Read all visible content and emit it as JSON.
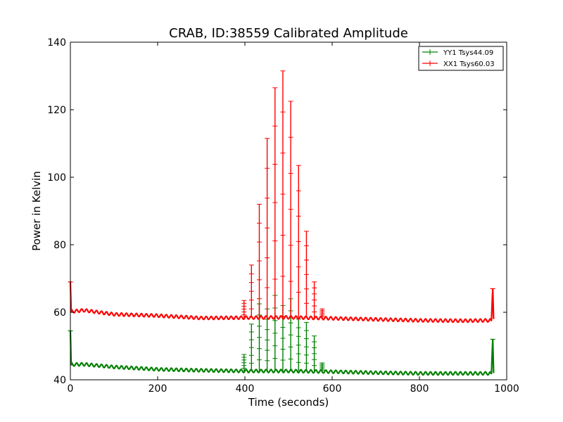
{
  "chart_data": {
    "type": "line",
    "title": "CRAB, ID:38559 Calibrated Amplitude",
    "xlabel": "Time (seconds)",
    "ylabel": "Power in Kelvin",
    "xlim": [
      0,
      1000
    ],
    "ylim": [
      40,
      140
    ],
    "xticks": [
      0,
      200,
      400,
      600,
      800,
      1000
    ],
    "yticks": [
      40,
      60,
      80,
      100,
      120,
      140
    ],
    "grid": false,
    "legend_position": "top-right",
    "marker": "plus",
    "series": [
      {
        "name": "YY1 Tsys44.09",
        "color": "#008000",
        "baseline": [
          [
            0,
            54.5
          ],
          [
            2,
            44.5
          ],
          [
            30,
            44.6
          ],
          [
            100,
            43.8
          ],
          [
            200,
            43.1
          ],
          [
            300,
            42.8
          ],
          [
            400,
            42.6
          ],
          [
            500,
            42.6
          ],
          [
            600,
            42.4
          ],
          [
            700,
            42.1
          ],
          [
            800,
            41.9
          ],
          [
            900,
            41.9
          ],
          [
            965,
            41.9
          ],
          [
            968,
            52.0
          ],
          [
            970,
            42.0
          ]
        ],
        "spikes": [
          [
            398,
            47.5
          ],
          [
            415,
            56.5
          ],
          [
            433,
            62.5
          ],
          [
            451,
            61.0
          ],
          [
            469,
            65.0
          ],
          [
            487,
            62.0
          ],
          [
            505,
            64.0
          ],
          [
            523,
            58.0
          ],
          [
            541,
            57.0
          ],
          [
            559,
            53.0
          ],
          [
            577,
            45.0
          ]
        ]
      },
      {
        "name": "XX1 Tsys60.03",
        "color": "#ff0000",
        "baseline": [
          [
            0,
            69.0
          ],
          [
            2,
            60.2
          ],
          [
            30,
            60.6
          ],
          [
            100,
            59.4
          ],
          [
            200,
            59.0
          ],
          [
            300,
            58.3
          ],
          [
            400,
            58.4
          ],
          [
            500,
            58.5
          ],
          [
            600,
            58.2
          ],
          [
            700,
            57.9
          ],
          [
            800,
            57.6
          ],
          [
            900,
            57.5
          ],
          [
            965,
            57.6
          ],
          [
            968,
            67.0
          ],
          [
            970,
            58.0
          ]
        ],
        "spikes": [
          [
            398,
            63.5
          ],
          [
            415,
            74.0
          ],
          [
            433,
            92.0
          ],
          [
            451,
            111.5
          ],
          [
            469,
            126.5
          ],
          [
            487,
            131.5
          ],
          [
            505,
            122.5
          ],
          [
            523,
            103.5
          ],
          [
            541,
            84.0
          ],
          [
            559,
            69.0
          ],
          [
            577,
            61.0
          ]
        ]
      }
    ]
  }
}
